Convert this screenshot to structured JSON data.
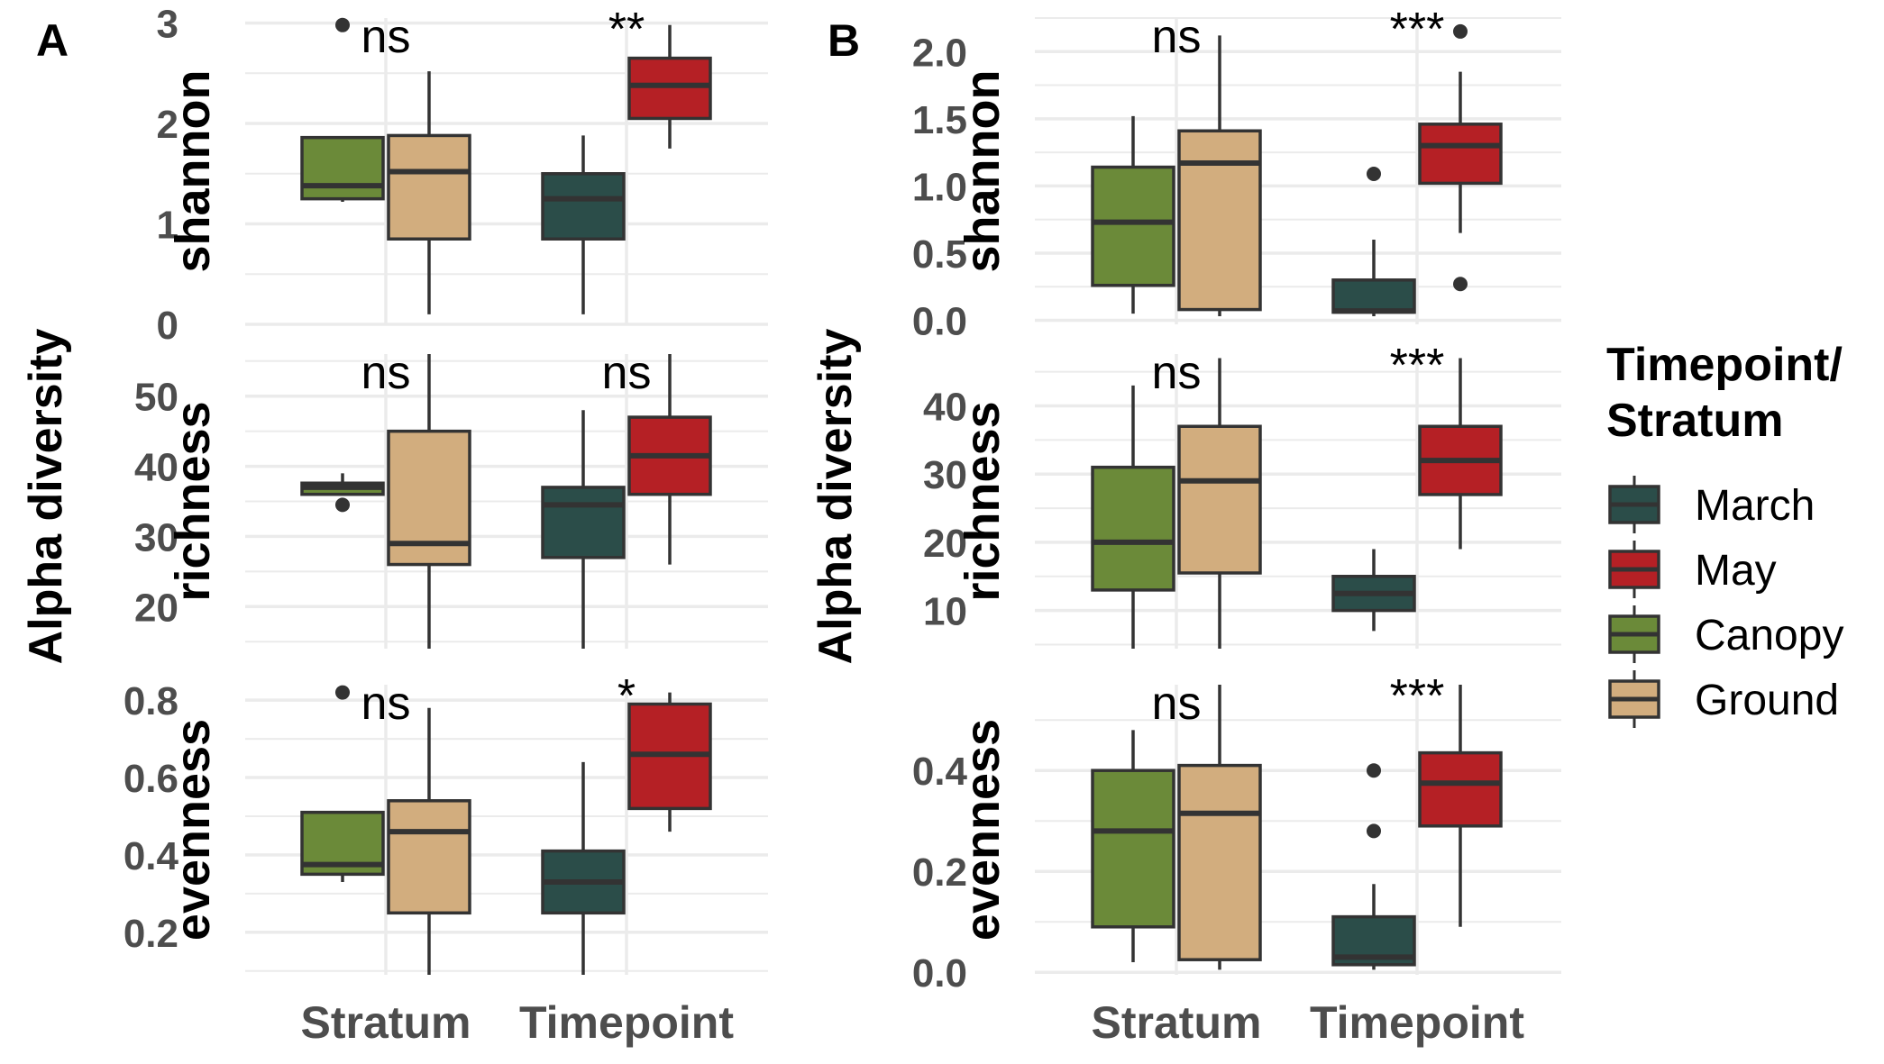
{
  "figure": {
    "panels": [
      {
        "id": "A",
        "label": "A",
        "ylabel": "Alpha diversity",
        "categories": [
          "Stratum",
          "Timepoint"
        ],
        "rows": [
          {
            "metric": "shannon",
            "yticks": [
              "0",
              "1",
              "2",
              "3"
            ],
            "ytick_values": [
              0,
              1,
              2,
              3
            ],
            "ylim": [
              0,
              3.05
            ],
            "sig": [
              "ns",
              "**"
            ]
          },
          {
            "metric": "richness",
            "yticks": [
              "20",
              "30",
              "40",
              "50"
            ],
            "ytick_values": [
              20,
              30,
              40,
              50
            ],
            "ylim": [
              14,
              56
            ],
            "sig": [
              "ns",
              "ns"
            ]
          },
          {
            "metric": "evenness",
            "yticks": [
              "0.2",
              "0.4",
              "0.6",
              "0.8"
            ],
            "ytick_values": [
              0.2,
              0.4,
              0.6,
              0.8
            ],
            "ylim": [
              0.09,
              0.84
            ],
            "sig": [
              "ns",
              "*"
            ]
          }
        ]
      },
      {
        "id": "B",
        "label": "B",
        "ylabel": "Alpha diversity",
        "categories": [
          "Stratum",
          "Timepoint"
        ],
        "rows": [
          {
            "metric": "shannon",
            "yticks": [
              "0.0",
              "0.5",
              "1.0",
              "1.5",
              "2.0"
            ],
            "ytick_values": [
              0,
              0.5,
              1.0,
              1.5,
              2.0
            ],
            "ylim": [
              -0.03,
              2.25
            ],
            "sig": [
              "ns",
              "***"
            ]
          },
          {
            "metric": "richness",
            "yticks": [
              "10",
              "20",
              "30",
              "40"
            ],
            "ytick_values": [
              10,
              20,
              30,
              40
            ],
            "ylim": [
              4.4,
              47.6
            ],
            "sig": [
              "ns",
              "***"
            ]
          },
          {
            "metric": "evenness",
            "yticks": [
              "0.0",
              "0.2",
              "0.4"
            ],
            "ytick_values": [
              0,
              0.2,
              0.4
            ],
            "ylim": [
              -0.005,
              0.57
            ],
            "sig": [
              "ns",
              "***"
            ]
          }
        ]
      }
    ],
    "legend": {
      "title_lines": [
        "Timepoint/",
        "Stratum"
      ],
      "placement": "right",
      "items": [
        {
          "name": "March",
          "color": "#2b4d49"
        },
        {
          "name": "May",
          "color": "#b52025"
        },
        {
          "name": "Canopy",
          "color": "#6b8a39"
        },
        {
          "name": "Ground",
          "color": "#d2ad7e"
        }
      ]
    }
  },
  "chart_data": [
    {
      "type": "box",
      "panel": "A",
      "metric": "shannon",
      "categories": [
        "Stratum",
        "Timepoint"
      ],
      "ylim": [
        0,
        3.05
      ],
      "series": [
        {
          "name": "Canopy",
          "category": "Stratum",
          "whisker_low": 1.22,
          "q1": 1.25,
          "median": 1.38,
          "q3": 1.86,
          "whisker_high": 1.86,
          "outliers": [
            2.98
          ]
        },
        {
          "name": "Ground",
          "category": "Stratum",
          "whisker_low": 0.1,
          "q1": 0.85,
          "median": 1.52,
          "q3": 1.88,
          "whisker_high": 2.52,
          "outliers": []
        },
        {
          "name": "March",
          "category": "Timepoint",
          "whisker_low": 0.1,
          "q1": 0.85,
          "median": 1.25,
          "q3": 1.5,
          "whisker_high": 1.88,
          "outliers": []
        },
        {
          "name": "May",
          "category": "Timepoint",
          "whisker_low": 1.75,
          "q1": 2.05,
          "median": 2.38,
          "q3": 2.65,
          "whisker_high": 2.98,
          "outliers": []
        }
      ],
      "significance": {
        "Stratum": "ns",
        "Timepoint": "**"
      }
    },
    {
      "type": "box",
      "panel": "A",
      "metric": "richness",
      "categories": [
        "Stratum",
        "Timepoint"
      ],
      "ylim": [
        14,
        56
      ],
      "series": [
        {
          "name": "Canopy",
          "category": "Stratum",
          "whisker_low": 36,
          "q1": 36,
          "median": 37,
          "q3": 37.6,
          "whisker_high": 39,
          "outliers": [
            34.5
          ]
        },
        {
          "name": "Ground",
          "category": "Stratum",
          "whisker_low": 14,
          "q1": 26,
          "median": 29,
          "q3": 45,
          "whisker_high": 56,
          "outliers": []
        },
        {
          "name": "March",
          "category": "Timepoint",
          "whisker_low": 14,
          "q1": 27,
          "median": 34.5,
          "q3": 37,
          "whisker_high": 48,
          "outliers": []
        },
        {
          "name": "May",
          "category": "Timepoint",
          "whisker_low": 26,
          "q1": 36,
          "median": 41.5,
          "q3": 47,
          "whisker_high": 56,
          "outliers": []
        }
      ],
      "significance": {
        "Stratum": "ns",
        "Timepoint": "ns"
      }
    },
    {
      "type": "box",
      "panel": "A",
      "metric": "evenness",
      "categories": [
        "Stratum",
        "Timepoint"
      ],
      "ylim": [
        0.09,
        0.84
      ],
      "series": [
        {
          "name": "Canopy",
          "category": "Stratum",
          "whisker_low": 0.33,
          "q1": 0.35,
          "median": 0.375,
          "q3": 0.51,
          "whisker_high": 0.51,
          "outliers": [
            0.82
          ]
        },
        {
          "name": "Ground",
          "category": "Stratum",
          "whisker_low": 0.09,
          "q1": 0.25,
          "median": 0.46,
          "q3": 0.54,
          "whisker_high": 0.78,
          "outliers": []
        },
        {
          "name": "March",
          "category": "Timepoint",
          "whisker_low": 0.09,
          "q1": 0.25,
          "median": 0.33,
          "q3": 0.41,
          "whisker_high": 0.64,
          "outliers": []
        },
        {
          "name": "May",
          "category": "Timepoint",
          "whisker_low": 0.46,
          "q1": 0.52,
          "median": 0.66,
          "q3": 0.79,
          "whisker_high": 0.82,
          "outliers": []
        }
      ],
      "significance": {
        "Stratum": "ns",
        "Timepoint": "*"
      }
    },
    {
      "type": "box",
      "panel": "B",
      "metric": "shannon",
      "categories": [
        "Stratum",
        "Timepoint"
      ],
      "ylim": [
        -0.03,
        2.25
      ],
      "series": [
        {
          "name": "Canopy",
          "category": "Stratum",
          "whisker_low": 0.05,
          "q1": 0.26,
          "median": 0.73,
          "q3": 1.14,
          "whisker_high": 1.52,
          "outliers": []
        },
        {
          "name": "Ground",
          "category": "Stratum",
          "whisker_low": 0.03,
          "q1": 0.08,
          "median": 1.17,
          "q3": 1.41,
          "whisker_high": 2.12,
          "outliers": []
        },
        {
          "name": "March",
          "category": "Timepoint",
          "whisker_low": 0.03,
          "q1": 0.06,
          "median": 0.07,
          "q3": 0.3,
          "whisker_high": 0.6,
          "outliers": [
            1.09
          ]
        },
        {
          "name": "May",
          "category": "Timepoint",
          "whisker_low": 0.65,
          "q1": 1.02,
          "median": 1.3,
          "q3": 1.46,
          "whisker_high": 1.85,
          "outliers": [
            2.15,
            0.27
          ]
        }
      ],
      "significance": {
        "Stratum": "ns",
        "Timepoint": "***"
      }
    },
    {
      "type": "box",
      "panel": "B",
      "metric": "richness",
      "categories": [
        "Stratum",
        "Timepoint"
      ],
      "ylim": [
        4.4,
        47.6
      ],
      "series": [
        {
          "name": "Canopy",
          "category": "Stratum",
          "whisker_low": 4.4,
          "q1": 13,
          "median": 20,
          "q3": 31,
          "whisker_high": 43,
          "outliers": []
        },
        {
          "name": "Ground",
          "category": "Stratum",
          "whisker_low": 4.4,
          "q1": 15.5,
          "median": 29,
          "q3": 37,
          "whisker_high": 47,
          "outliers": []
        },
        {
          "name": "March",
          "category": "Timepoint",
          "whisker_low": 7,
          "q1": 10,
          "median": 12.5,
          "q3": 15,
          "whisker_high": 19,
          "outliers": []
        },
        {
          "name": "May",
          "category": "Timepoint",
          "whisker_low": 19,
          "q1": 27,
          "median": 32,
          "q3": 37,
          "whisker_high": 47,
          "outliers": []
        }
      ],
      "significance": {
        "Stratum": "ns",
        "Timepoint": "***"
      }
    },
    {
      "type": "box",
      "panel": "B",
      "metric": "evenness",
      "categories": [
        "Stratum",
        "Timepoint"
      ],
      "ylim": [
        -0.005,
        0.57
      ],
      "series": [
        {
          "name": "Canopy",
          "category": "Stratum",
          "whisker_low": 0.02,
          "q1": 0.09,
          "median": 0.28,
          "q3": 0.4,
          "whisker_high": 0.48,
          "outliers": []
        },
        {
          "name": "Ground",
          "category": "Stratum",
          "whisker_low": 0.005,
          "q1": 0.025,
          "median": 0.315,
          "q3": 0.41,
          "whisker_high": 0.57,
          "outliers": []
        },
        {
          "name": "March",
          "category": "Timepoint",
          "whisker_low": 0.005,
          "q1": 0.015,
          "median": 0.03,
          "q3": 0.11,
          "whisker_high": 0.175,
          "outliers": [
            0.4,
            0.28
          ]
        },
        {
          "name": "May",
          "category": "Timepoint",
          "whisker_low": 0.09,
          "q1": 0.29,
          "median": 0.375,
          "q3": 0.435,
          "whisker_high": 0.57,
          "outliers": []
        }
      ],
      "significance": {
        "Stratum": "ns",
        "Timepoint": "***"
      }
    }
  ]
}
